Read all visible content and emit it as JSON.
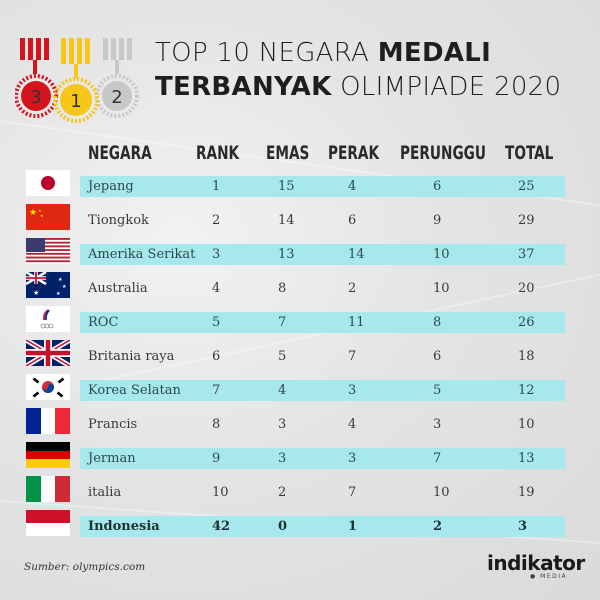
{
  "title": {
    "line1_light": "TOP 10 NEGARA ",
    "line1_bold": "MEDALI",
    "line2_bold": "TERBANYAK",
    "line2_light": " OLIMPIADE 2020"
  },
  "medals": [
    "3",
    "1",
    "2"
  ],
  "colors": {
    "stripe": "#a6e8eb",
    "bronze": "#d4141c",
    "gold": "#f6c618",
    "silver": "#c8c8c8"
  },
  "columns": [
    "NEGARA",
    "RANK",
    "EMAS",
    "PERAK",
    "PERUNGGU",
    "TOTAL"
  ],
  "rows": [
    {
      "flag": "japan-flag",
      "negara": "Jepang",
      "rank": "1",
      "emas": "15",
      "perak": "4",
      "perunggu": "6",
      "total": "25"
    },
    {
      "flag": "china-flag",
      "negara": "Tiongkok",
      "rank": "2",
      "emas": "14",
      "perak": "6",
      "perunggu": "9",
      "total": "29"
    },
    {
      "flag": "usa-flag",
      "negara": "Amerika Serikat",
      "rank": "3",
      "emas": "13",
      "perak": "14",
      "perunggu": "10",
      "total": "37"
    },
    {
      "flag": "australia-flag",
      "negara": "Australia",
      "rank": "4",
      "emas": "8",
      "perak": "2",
      "perunggu": "10",
      "total": "20"
    },
    {
      "flag": "roc-flag",
      "negara": "ROC",
      "rank": "5",
      "emas": "7",
      "perak": "11",
      "perunggu": "8",
      "total": "26"
    },
    {
      "flag": "uk-flag",
      "negara": "Britania raya",
      "rank": "6",
      "emas": "5",
      "perak": "7",
      "perunggu": "6",
      "total": "18"
    },
    {
      "flag": "korea-flag",
      "negara": "Korea Selatan",
      "rank": "7",
      "emas": "4",
      "perak": "3",
      "perunggu": "5",
      "total": "12"
    },
    {
      "flag": "france-flag",
      "negara": "Prancis",
      "rank": "8",
      "emas": "3",
      "perak": "4",
      "perunggu": "3",
      "total": "10"
    },
    {
      "flag": "germany-flag",
      "negara": "Jerman",
      "rank": "9",
      "emas": "3",
      "perak": "3",
      "perunggu": "7",
      "total": "13"
    },
    {
      "flag": "italy-flag",
      "negara": "italia",
      "rank": "10",
      "emas": "2",
      "perak": "7",
      "perunggu": "10",
      "total": "19"
    },
    {
      "flag": "indonesia-flag",
      "negara": "Indonesia",
      "rank": "42",
      "emas": "0",
      "perak": "1",
      "perunggu": "2",
      "total": "3"
    }
  ],
  "source": "Sumber: olympics.com",
  "logo": {
    "name": "indikator",
    "sub": "MEDIA"
  }
}
